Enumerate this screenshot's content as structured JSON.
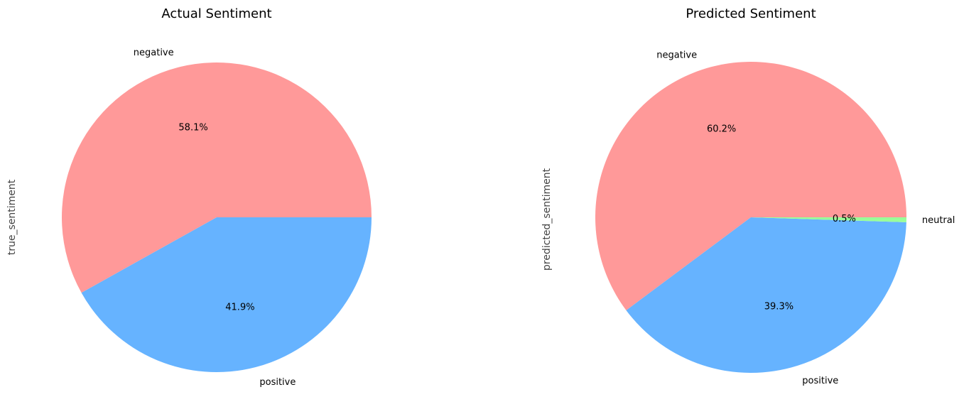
{
  "chart_data": [
    {
      "type": "pie",
      "title": "Actual Sentiment",
      "ylabel": "true_sentiment",
      "slices": [
        {
          "label": "negative",
          "value": 58.1,
          "pct_label": "58.1%",
          "color": "#ff9999"
        },
        {
          "label": "positive",
          "value": 41.9,
          "pct_label": "41.9%",
          "color": "#66b3ff"
        }
      ]
    },
    {
      "type": "pie",
      "title": "Predicted Sentiment",
      "ylabel": "predicted_sentiment",
      "slices": [
        {
          "label": "negative",
          "value": 60.2,
          "pct_label": "60.2%",
          "color": "#ff9999"
        },
        {
          "label": "positive",
          "value": 39.3,
          "pct_label": "39.3%",
          "color": "#66b3ff"
        },
        {
          "label": "neutral",
          "value": 0.5,
          "pct_label": "0.5%",
          "color": "#99ff99"
        }
      ]
    }
  ]
}
